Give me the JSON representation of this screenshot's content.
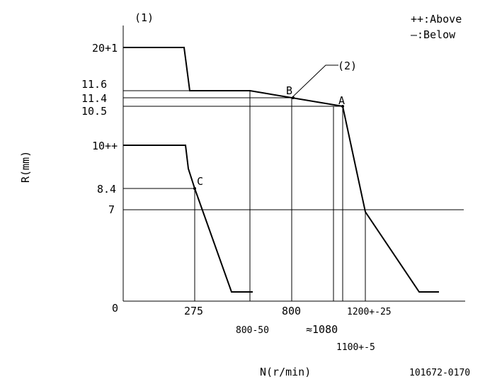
{
  "diagram": {
    "marker_1": "(1)",
    "marker_2": "(2)",
    "legend": {
      "above": "++:Above",
      "below": "—:Below"
    },
    "y_axis_label": "R(mm)",
    "x_axis_label": "N(r/min)",
    "figure_code": "101672-0170",
    "y_ticks": [
      "20+1",
      "11.6",
      "11.4",
      "10.5",
      "10++",
      "8.4",
      "7",
      "0"
    ],
    "x_ticks": {
      "t275": "275",
      "t800_50": "800-50",
      "t800": "800",
      "t1080": "≈1080",
      "t1200": "1200+-25",
      "t1100": "1100+-5"
    },
    "points": {
      "a": "A",
      "b": "B",
      "c": "C"
    }
  }
}
